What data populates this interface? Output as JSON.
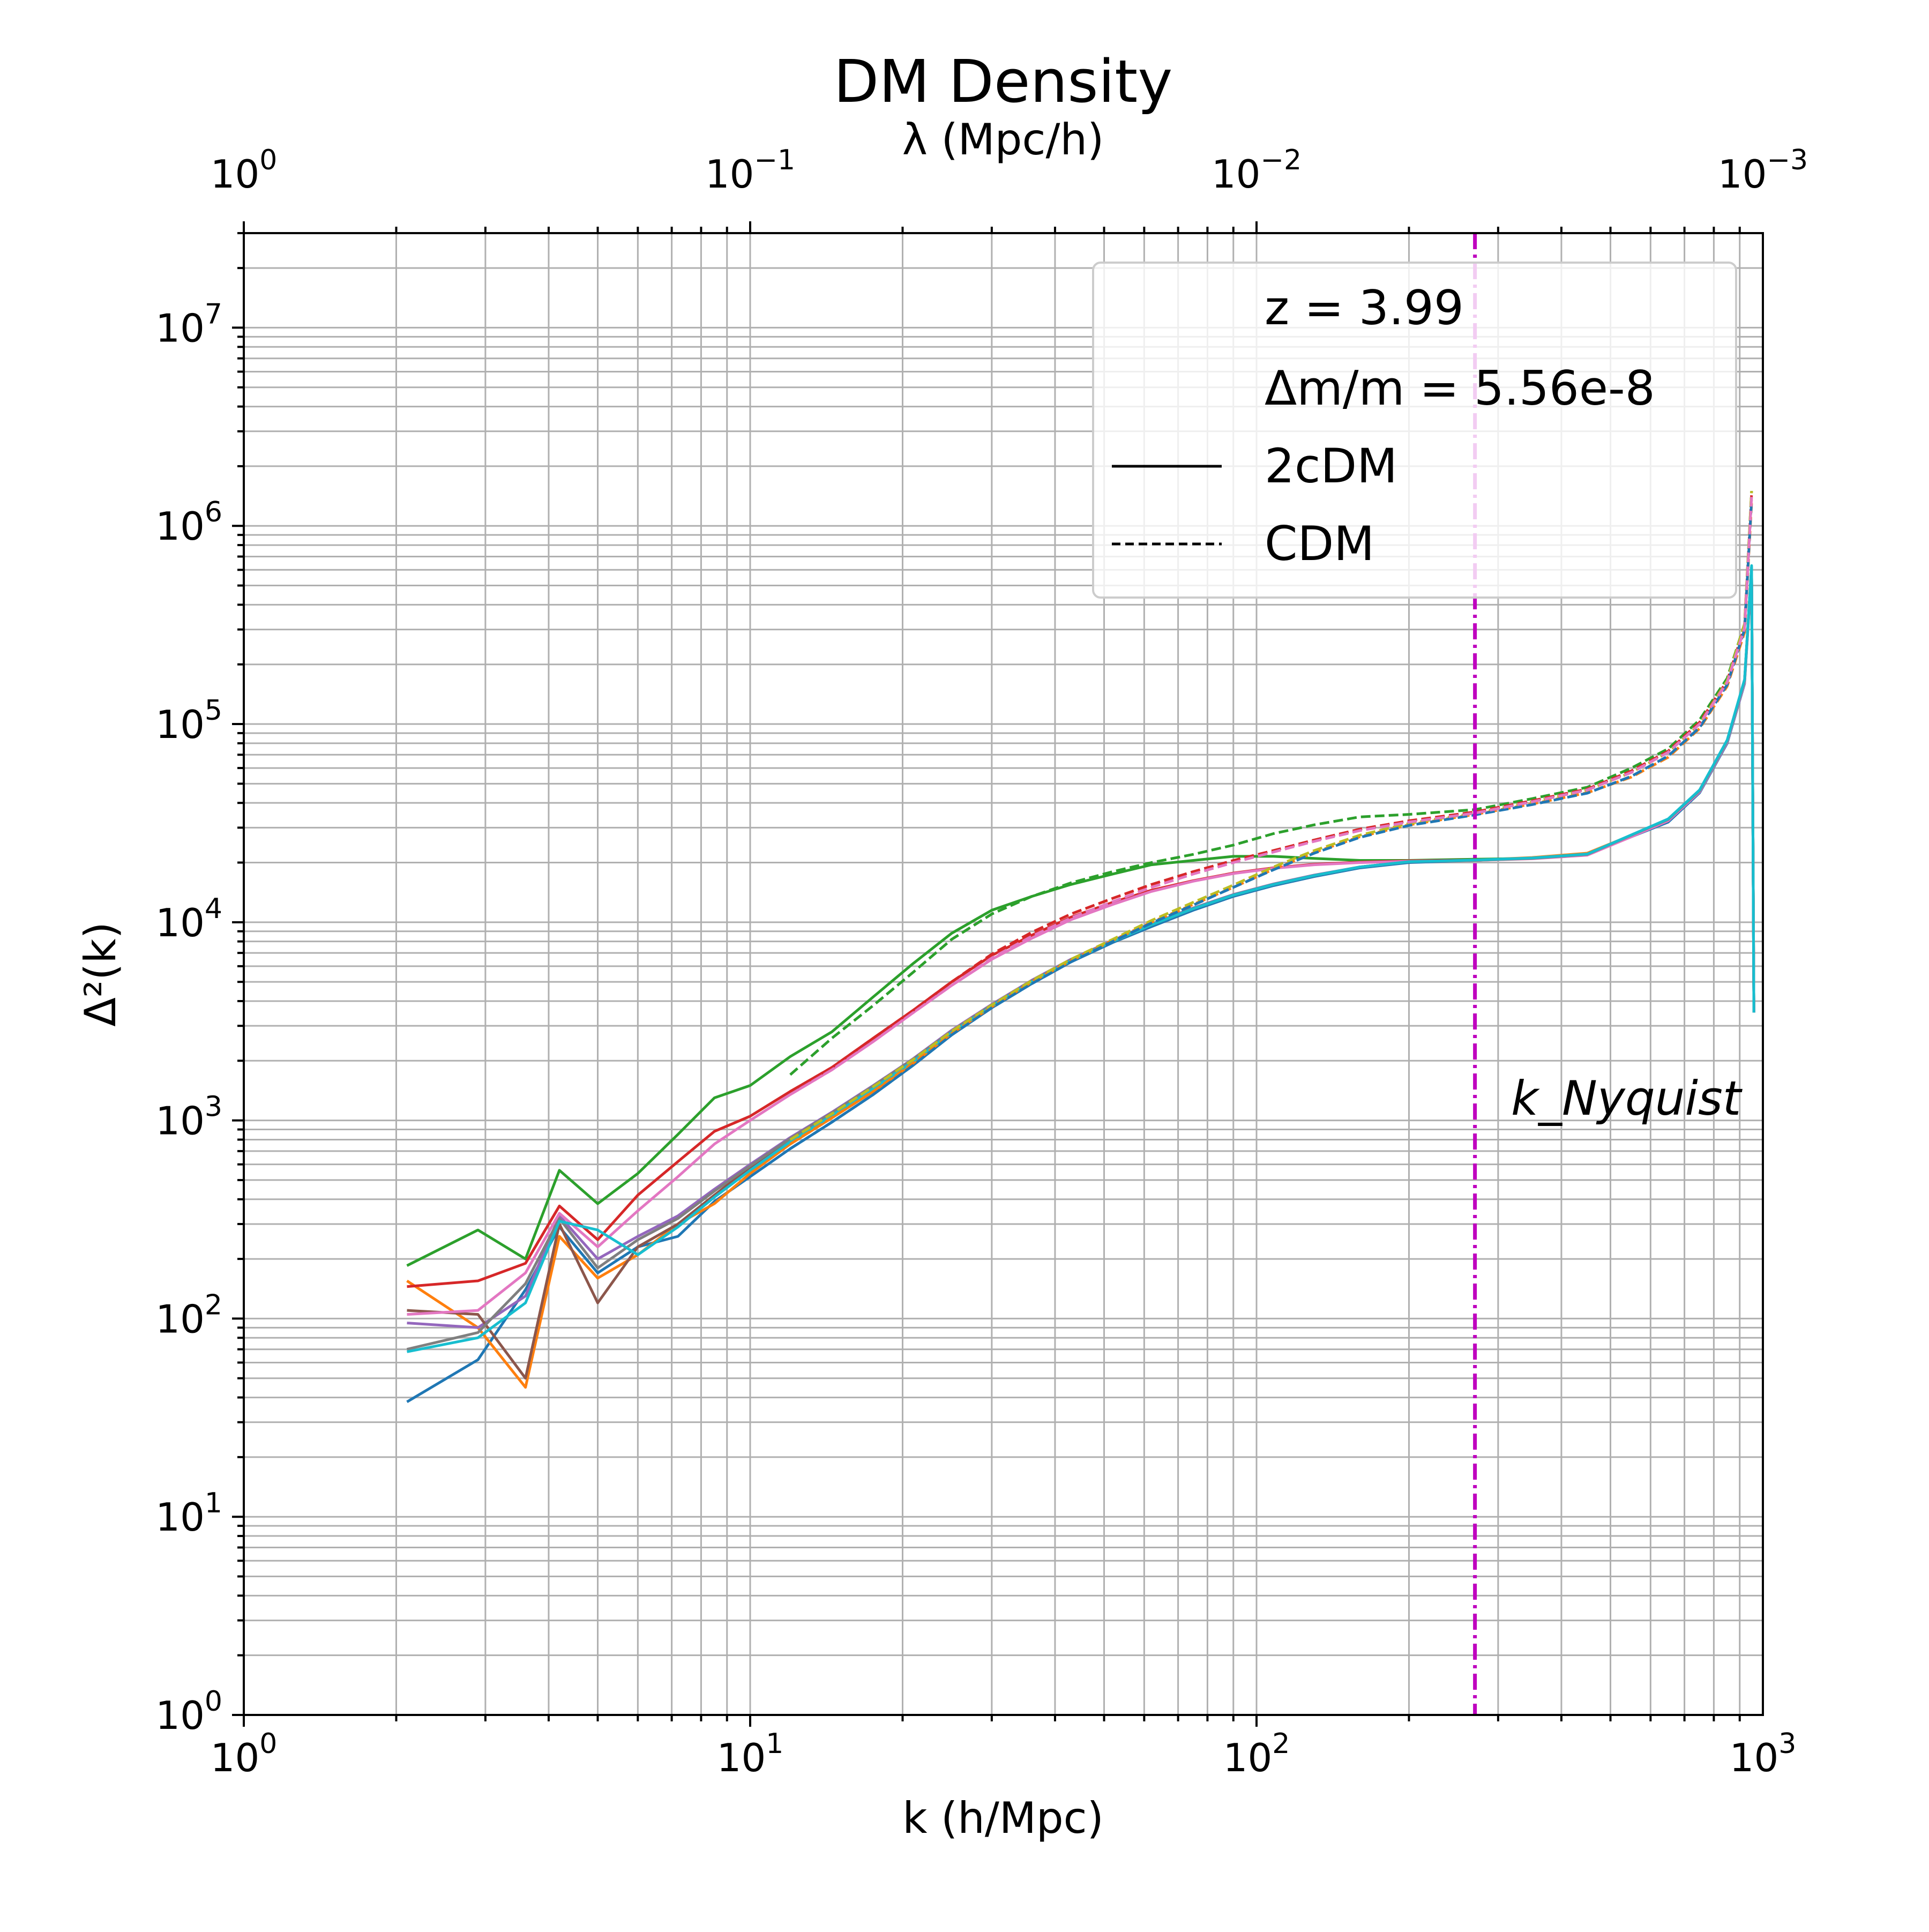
{
  "chart_data": {
    "type": "line",
    "title": "DM Density",
    "xlabel": "k (h/Mpc)",
    "ylabel": "Δ²(k)",
    "x2label": "λ (Mpc/h)",
    "xscale": "log",
    "yscale": "log",
    "xlim": [
      1,
      1000
    ],
    "ylim": [
      1,
      30000000
    ],
    "x2lim": [
      1,
      0.001
    ],
    "grid": true,
    "legend_placement": "upper right",
    "xtick_labels": [
      "10^0",
      "10^1",
      "10^2",
      "10^3"
    ],
    "ytick_labels": [
      "10^0",
      "10^1",
      "10^2",
      "10^3",
      "10^4",
      "10^5",
      "10^6",
      "10^7"
    ],
    "x2tick_labels": [
      "10^0",
      "10^-1",
      "10^-2",
      "10^-3"
    ],
    "legend": [
      {
        "label": "z = 3.99",
        "style": "none"
      },
      {
        "label": "Δm/m = 5.56e-8",
        "style": "none"
      },
      {
        "label": "2cDM",
        "style": "solid"
      },
      {
        "label": "CDM",
        "style": "dashed"
      }
    ],
    "annotations": [
      {
        "text": "k_Nyquist",
        "x": 330,
        "y": 1250
      }
    ],
    "vlines": [
      {
        "x": 270,
        "color": "#bf00bf",
        "style": "dashdot"
      }
    ],
    "colors": [
      "#1f77b4",
      "#ff7f0e",
      "#2ca02c",
      "#d62728",
      "#9467bd",
      "#8c564b",
      "#e377c2",
      "#7f7f7f",
      "#bcbd22",
      "#17becf"
    ],
    "series": [
      {
        "color": "#1f77b4",
        "style": "solid",
        "x": [
          2.1,
          2.9,
          3.6,
          4.2,
          5.0,
          6.0,
          7.2,
          8.5,
          10,
          12,
          14.5,
          17.5,
          21,
          25,
          30,
          36,
          43,
          52,
          62,
          75,
          90,
          108,
          130,
          160,
          200,
          270,
          350,
          450,
          550,
          650,
          750,
          850,
          920,
          950,
          960
        ],
        "y": [
          38,
          62,
          140,
          290,
          170,
          230,
          260,
          390,
          520,
          720,
          980,
          1350,
          1900,
          2700,
          3700,
          4900,
          6300,
          7900,
          9500,
          11500,
          13500,
          15300,
          17000,
          18800,
          20000,
          20500,
          21000,
          22000,
          27000,
          32000,
          45000,
          80000,
          160000,
          600000,
          3500
        ]
      },
      {
        "color": "#ff7f0e",
        "style": "solid",
        "x": [
          2.1,
          2.9,
          3.6,
          4.2,
          5.0,
          6.0,
          7.2,
          8.5,
          10,
          12,
          14.5,
          17.5,
          21,
          25,
          30,
          36,
          43,
          52,
          62,
          75,
          90,
          108,
          130,
          160,
          200,
          270,
          350,
          450,
          550,
          650,
          750,
          850,
          920,
          950,
          960
        ],
        "y": [
          155,
          90,
          45,
          260,
          160,
          210,
          300,
          380,
          540,
          760,
          1030,
          1400,
          1950,
          2750,
          3750,
          5000,
          6400,
          8000,
          9700,
          11700,
          13700,
          15500,
          17200,
          19000,
          20200,
          20600,
          21200,
          22300,
          27500,
          33000,
          46000,
          82000,
          165000,
          620000,
          3500
        ]
      },
      {
        "color": "#2ca02c",
        "style": "solid",
        "x": [
          2.1,
          2.9,
          3.6,
          4.2,
          5.0,
          6.0,
          7.2,
          8.5,
          10,
          12,
          14.5,
          17.5,
          21,
          25,
          30,
          36,
          43,
          52,
          62,
          75,
          90,
          108,
          130,
          160,
          200,
          270,
          350,
          450,
          550,
          650,
          750,
          850,
          920,
          950,
          960
        ],
        "y": [
          185,
          280,
          200,
          560,
          380,
          540,
          850,
          1300,
          1500,
          2100,
          2800,
          4200,
          6200,
          8800,
          11500,
          13500,
          15500,
          17500,
          19500,
          20500,
          21500,
          21500,
          21000,
          20500,
          20500,
          20800,
          21000,
          22000,
          27500,
          33000,
          46000,
          82000,
          165000,
          620000,
          3500
        ]
      },
      {
        "color": "#d62728",
        "style": "solid",
        "x": [
          2.1,
          2.9,
          3.6,
          4.2,
          5.0,
          6.0,
          7.2,
          8.5,
          10,
          12,
          14.5,
          17.5,
          21,
          25,
          30,
          36,
          43,
          52,
          62,
          75,
          90,
          108,
          130,
          160,
          200,
          270,
          350,
          450,
          550,
          650,
          750,
          850,
          920,
          950,
          960
        ],
        "y": [
          145,
          155,
          190,
          370,
          250,
          420,
          620,
          880,
          1050,
          1400,
          1850,
          2600,
          3600,
          5000,
          6800,
          8600,
          10600,
          12600,
          14500,
          16200,
          17700,
          18800,
          19600,
          20100,
          20400,
          20600,
          21000,
          22000,
          27500,
          33000,
          46000,
          82000,
          165000,
          620000,
          3500
        ]
      },
      {
        "color": "#9467bd",
        "style": "solid",
        "x": [
          2.1,
          2.9,
          3.6,
          4.2,
          5.0,
          6.0,
          7.2,
          8.5,
          10,
          12,
          14.5,
          17.5,
          21,
          25,
          30,
          36,
          43,
          52,
          62,
          75,
          90,
          108,
          130,
          160,
          200,
          270,
          350,
          450,
          550,
          650,
          750,
          850,
          920,
          950,
          960
        ],
        "y": [
          95,
          90,
          130,
          330,
          200,
          260,
          330,
          450,
          600,
          820,
          1100,
          1500,
          2050,
          2850,
          3850,
          5100,
          6500,
          8100,
          9800,
          11800,
          13800,
          15600,
          17300,
          19000,
          20200,
          20500,
          21000,
          22000,
          27500,
          33000,
          46000,
          82000,
          165000,
          620000,
          3500
        ]
      },
      {
        "color": "#8c564b",
        "style": "solid",
        "x": [
          2.1,
          2.9,
          3.6,
          4.2,
          5.0,
          6.0,
          7.2,
          8.5,
          10,
          12,
          14.5,
          17.5,
          21,
          25,
          30,
          36,
          43,
          52,
          62,
          75,
          90,
          108,
          130,
          160,
          200,
          270,
          350,
          450,
          550,
          650,
          750,
          850,
          920,
          950,
          960
        ],
        "y": [
          110,
          105,
          50,
          300,
          120,
          230,
          300,
          420,
          580,
          800,
          1080,
          1480,
          2020,
          2800,
          3800,
          5000,
          6400,
          8000,
          9700,
          11700,
          13700,
          15500,
          17200,
          19000,
          20200,
          20600,
          21000,
          22000,
          27500,
          33000,
          46000,
          82000,
          165000,
          620000,
          3500
        ]
      },
      {
        "color": "#e377c2",
        "style": "solid",
        "x": [
          2.1,
          2.9,
          3.6,
          4.2,
          5.0,
          6.0,
          7.2,
          8.5,
          10,
          12,
          14.5,
          17.5,
          21,
          25,
          30,
          36,
          43,
          52,
          62,
          75,
          90,
          108,
          130,
          160,
          200,
          270,
          350,
          450,
          550,
          650,
          750,
          850,
          920,
          950,
          960
        ],
        "y": [
          105,
          110,
          170,
          340,
          230,
          350,
          520,
          760,
          1000,
          1350,
          1800,
          2500,
          3500,
          4800,
          6500,
          8300,
          10300,
          12300,
          14300,
          16100,
          17600,
          18700,
          19500,
          20000,
          20300,
          20500,
          20900,
          21800,
          27000,
          32500,
          45500,
          81000,
          162000,
          610000,
          3500
        ]
      },
      {
        "color": "#7f7f7f",
        "style": "solid",
        "x": [
          2.1,
          2.9,
          3.6,
          4.2,
          5.0,
          6.0,
          7.2,
          8.5,
          10,
          12,
          14.5,
          17.5,
          21,
          25,
          30,
          36,
          43,
          52,
          62,
          75,
          90,
          108,
          130,
          160,
          200,
          270,
          350,
          450,
          550,
          650,
          750,
          850,
          920,
          950,
          960
        ],
        "y": [
          70,
          85,
          150,
          320,
          180,
          250,
          320,
          440,
          590,
          810,
          1090,
          1490,
          2040,
          2820,
          3820,
          5050,
          6450,
          8050,
          9750,
          11750,
          13750,
          15550,
          17250,
          19000,
          20200,
          20500,
          21000,
          22000,
          27500,
          33000,
          46000,
          82000,
          165000,
          620000,
          3500
        ]
      },
      {
        "color": "#17becf",
        "style": "solid",
        "x": [
          2.1,
          2.9,
          3.6,
          4.2,
          5.0,
          6.0,
          7.2,
          8.5,
          10,
          12,
          14.5,
          17.5,
          21,
          25,
          30,
          36,
          43,
          52,
          62,
          75,
          90,
          108,
          130,
          160,
          200,
          270,
          350,
          450,
          550,
          650,
          750,
          850,
          920,
          950,
          960
        ],
        "y": [
          68,
          80,
          120,
          310,
          280,
          210,
          290,
          410,
          560,
          780,
          1060,
          1450,
          1990,
          2780,
          3780,
          5000,
          6400,
          8000,
          9700,
          11700,
          13700,
          15500,
          17200,
          19000,
          20200,
          20600,
          21100,
          22100,
          27600,
          33200,
          46500,
          83000,
          168000,
          630000,
          3500
        ]
      },
      {
        "color": "#2ca02c",
        "style": "dashed",
        "x": [
          12,
          14.5,
          17.5,
          21,
          25,
          30,
          36,
          43,
          52,
          62,
          75,
          90,
          108,
          130,
          160,
          200,
          270,
          350,
          450,
          550,
          650,
          750,
          850,
          920,
          950
        ],
        "y": [
          1700,
          2600,
          3800,
          5600,
          8200,
          11000,
          13500,
          15800,
          18000,
          20000,
          22000,
          24500,
          28000,
          31000,
          34000,
          35000,
          37000,
          42000,
          48000,
          60000,
          75000,
          105000,
          170000,
          320000,
          1500000
        ]
      },
      {
        "color": "#d62728",
        "style": "dashed",
        "x": [
          12,
          14.5,
          17.5,
          21,
          25,
          30,
          36,
          43,
          52,
          62,
          75,
          90,
          108,
          130,
          160,
          200,
          270,
          350,
          450,
          550,
          650,
          750,
          850,
          920,
          950
        ],
        "y": [
          1400,
          1850,
          2600,
          3600,
          5000,
          6900,
          8900,
          11000,
          13200,
          15500,
          18000,
          20500,
          23000,
          26000,
          29500,
          32500,
          36000,
          41000,
          47000,
          58000,
          73000,
          102000,
          165000,
          310000,
          1450000
        ]
      },
      {
        "color": "#ff7f0e",
        "style": "dashed",
        "x": [
          12,
          14.5,
          17.5,
          21,
          25,
          30,
          36,
          43,
          52,
          62,
          75,
          90,
          108,
          130,
          160,
          200,
          270,
          350,
          450,
          550,
          650,
          750,
          850,
          920,
          950
        ],
        "y": [
          760,
          1030,
          1400,
          1950,
          2750,
          3750,
          5000,
          6400,
          8100,
          10000,
          12300,
          15000,
          18500,
          22500,
          27000,
          31000,
          35000,
          39500,
          45000,
          54000,
          68000,
          95000,
          155000,
          290000,
          1300000
        ]
      },
      {
        "color": "#bcbd22",
        "style": "dashed",
        "x": [
          12,
          14.5,
          17.5,
          21,
          25,
          30,
          36,
          43,
          52,
          62,
          75,
          90,
          108,
          130,
          160,
          200,
          270,
          350,
          450,
          550,
          650,
          750,
          850,
          920,
          950
        ],
        "y": [
          800,
          1080,
          1480,
          2030,
          2820,
          3820,
          5080,
          6500,
          8200,
          10200,
          12600,
          15400,
          19000,
          23000,
          27500,
          31500,
          35500,
          40500,
          46500,
          57000,
          72000,
          100000,
          165000,
          320000,
          1500000
        ]
      },
      {
        "color": "#1f77b4",
        "style": "dashed",
        "x": [
          12,
          14.5,
          17.5,
          21,
          25,
          30,
          36,
          43,
          52,
          62,
          75,
          90,
          108,
          130,
          160,
          200,
          270,
          350,
          450,
          550,
          650,
          750,
          850,
          920,
          950
        ],
        "y": [
          720,
          980,
          1350,
          1900,
          2700,
          3700,
          4900,
          6300,
          8000,
          9900,
          12200,
          15000,
          18400,
          22300,
          26800,
          30800,
          34800,
          39200,
          44800,
          54500,
          69000,
          96000,
          158000,
          300000,
          1350000
        ]
      },
      {
        "color": "#e377c2",
        "style": "dashed",
        "x": [
          12,
          14.5,
          17.5,
          21,
          25,
          30,
          36,
          43,
          52,
          62,
          75,
          90,
          108,
          130,
          160,
          200,
          270,
          350,
          450,
          550,
          650,
          750,
          850,
          920,
          950
        ],
        "y": [
          1350,
          1800,
          2500,
          3500,
          4800,
          6600,
          8500,
          10500,
          12700,
          15000,
          17500,
          20000,
          22600,
          25600,
          29000,
          32000,
          35500,
          40500,
          46500,
          57000,
          72000,
          100000,
          162000,
          305000,
          1400000
        ]
      }
    ]
  }
}
